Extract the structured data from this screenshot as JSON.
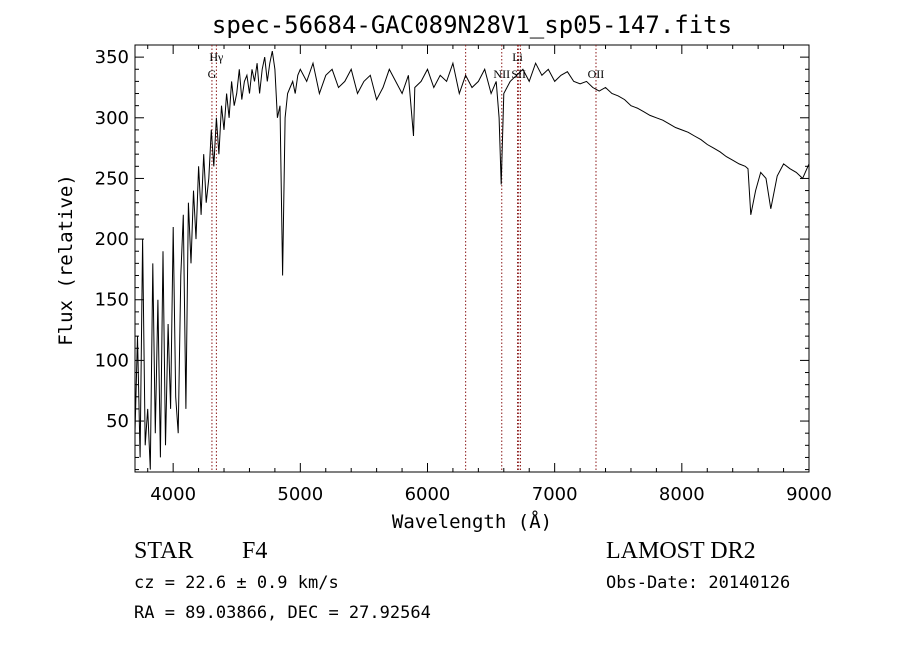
{
  "chart_data": {
    "type": "line",
    "title": "spec-56684-GAC089N28V1_sp05-147.fits",
    "xlabel": "Wavelength (Å)",
    "ylabel": "Flux (relative)",
    "xlim": [
      3700,
      9000
    ],
    "ylim": [
      8,
      360
    ],
    "xticks": [
      4000,
      5000,
      6000,
      7000,
      8000,
      9000
    ],
    "yticks": [
      50,
      100,
      150,
      200,
      250,
      300,
      350
    ],
    "grid": false,
    "series": [
      {
        "x": [
          3700,
          3720,
          3740,
          3760,
          3780,
          3800,
          3820,
          3840,
          3860,
          3880,
          3900,
          3920,
          3940,
          3960,
          3980,
          4000,
          4020,
          4040,
          4060,
          4080,
          4100,
          4120,
          4140,
          4160,
          4180,
          4200,
          4220,
          4240,
          4260,
          4280,
          4300,
          4320,
          4340,
          4360,
          4380,
          4400,
          4420,
          4440,
          4460,
          4480,
          4500,
          4520,
          4540,
          4560,
          4580,
          4600,
          4620,
          4640,
          4660,
          4680,
          4700,
          4720,
          4740,
          4760,
          4780,
          4800,
          4820,
          4840,
          4861,
          4880,
          4900,
          4920,
          4940,
          4960,
          4980,
          5000,
          5050,
          5100,
          5150,
          5200,
          5250,
          5300,
          5350,
          5400,
          5450,
          5500,
          5550,
          5600,
          5650,
          5700,
          5750,
          5800,
          5850,
          5890,
          5900,
          5950,
          6000,
          6050,
          6100,
          6150,
          6200,
          6250,
          6300,
          6350,
          6400,
          6450,
          6500,
          6540,
          6563,
          6580,
          6600,
          6650,
          6700,
          6750,
          6800,
          6850,
          6900,
          6950,
          7000,
          7050,
          7100,
          7150,
          7200,
          7250,
          7300,
          7350,
          7400,
          7450,
          7500,
          7550,
          7600,
          7650,
          7700,
          7750,
          7800,
          7850,
          7900,
          7950,
          8000,
          8050,
          8100,
          8150,
          8200,
          8250,
          8300,
          8350,
          8400,
          8450,
          8498,
          8520,
          8542,
          8580,
          8620,
          8662,
          8700,
          8750,
          8800,
          8850,
          8900,
          8950,
          9000
        ],
        "y": [
          40,
          120,
          20,
          200,
          30,
          60,
          10,
          180,
          40,
          150,
          20,
          190,
          30,
          130,
          60,
          210,
          70,
          40,
          170,
          220,
          60,
          230,
          180,
          240,
          200,
          260,
          220,
          270,
          230,
          250,
          290,
          260,
          300,
          270,
          310,
          290,
          320,
          300,
          330,
          310,
          320,
          340,
          315,
          330,
          335,
          320,
          340,
          330,
          345,
          320,
          340,
          350,
          330,
          345,
          355,
          340,
          300,
          310,
          170,
          300,
          320,
          325,
          330,
          320,
          335,
          340,
          330,
          345,
          320,
          335,
          340,
          325,
          330,
          340,
          320,
          330,
          335,
          315,
          325,
          340,
          330,
          320,
          335,
          285,
          325,
          330,
          340,
          325,
          335,
          330,
          345,
          320,
          335,
          325,
          330,
          340,
          320,
          330,
          300,
          245,
          320,
          330,
          335,
          340,
          330,
          345,
          335,
          340,
          330,
          335,
          338,
          330,
          328,
          330,
          325,
          322,
          325,
          320,
          318,
          315,
          310,
          308,
          305,
          302,
          300,
          298,
          295,
          292,
          290,
          288,
          285,
          282,
          278,
          275,
          272,
          268,
          265,
          262,
          260,
          258,
          220,
          240,
          255,
          250,
          225,
          252,
          262,
          258,
          255,
          250,
          262
        ]
      }
    ],
    "lines": [
      {
        "label": "Hγ",
        "x": 4340
      },
      {
        "label": "G",
        "x": 4305
      },
      {
        "label": "",
        "x": 6300
      },
      {
        "label": "NII",
        "x": 6584
      },
      {
        "label": "Li",
        "x": 6708
      },
      {
        "label": "SII",
        "x": 6717
      },
      {
        "label": "",
        "x": 6731
      },
      {
        "label": "OII",
        "x": 7325
      }
    ]
  },
  "info": {
    "class_label": "STAR",
    "subclass_label": "F4",
    "survey": "LAMOST DR2",
    "cz_text": "cz = 22.6 ± 0.9 km/s",
    "obs_date_text": "Obs-Date: 20140126",
    "coords_text": "RA =  89.03866, DEC =  27.92564"
  }
}
